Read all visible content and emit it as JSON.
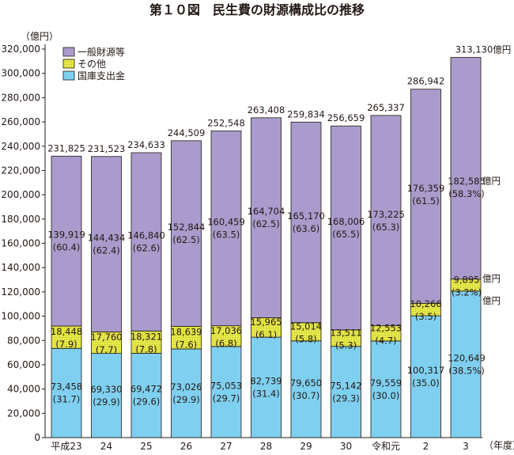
{
  "chart_data": {
    "type": "bar",
    "stacked": true,
    "title": "第１０図　民生費の財源構成比の推移",
    "ylabel": "（億円）",
    "xlabel": "（年度）",
    "ylim": [
      0,
      320000
    ],
    "yticks": [
      "0",
      "20,000",
      "40,000",
      "60,000",
      "80,000",
      "100,000",
      "120,000",
      "140,000",
      "160,000",
      "180,000",
      "200,000",
      "220,000",
      "240,000",
      "260,000",
      "280,000",
      "300,000",
      "320,000"
    ],
    "grid": false,
    "legend_position": "top-left",
    "categories": [
      "平成23",
      "24",
      "25",
      "26",
      "27",
      "28",
      "29",
      "30",
      "令和元",
      "2",
      "3"
    ],
    "totals": [
      231825,
      231523,
      234633,
      244509,
      252548,
      263408,
      259834,
      256659,
      265337,
      286942,
      313130
    ],
    "total_labels": [
      "231,825",
      "231,523",
      "234,633",
      "244,509",
      "252,548",
      "263,408",
      "259,834",
      "256,659",
      "265,337",
      "286,942",
      "313,130億円"
    ],
    "series": [
      {
        "name": "国庫支出金",
        "color": "#7fd0f0",
        "values": [
          73458,
          69330,
          69472,
          73026,
          75053,
          82739,
          79650,
          75142,
          79559,
          100317,
          120649
        ],
        "value_labels": [
          "73,458",
          "69,330",
          "69,472",
          "73,026",
          "75,053",
          "82,739",
          "79,650",
          "75,142",
          "79,559",
          "100,317",
          "120,649"
        ],
        "pct_labels": [
          "(31.7)",
          "(29.9)",
          "(29.6)",
          "(29.9)",
          "(29.7)",
          "(31.4)",
          "(30.7)",
          "(29.3)",
          "(30.0)",
          "(35.0)",
          "(38.5%)"
        ]
      },
      {
        "name": "その他",
        "color": "#e6e84a",
        "values": [
          18448,
          17760,
          18321,
          18639,
          17036,
          15965,
          15014,
          13511,
          12553,
          10266,
          9895
        ],
        "value_labels": [
          "18,448",
          "17,760",
          "18,321",
          "18,639",
          "17,036",
          "15,965",
          "15,014",
          "13,511",
          "12,553",
          "10,266",
          "9,895"
        ],
        "pct_labels": [
          "(7.9)",
          "(7.7)",
          "(7.8)",
          "(7.6)",
          "(6.8)",
          "(6.1)",
          "(5.8)",
          "(5.3)",
          "(4.7)",
          "(3.5)",
          "(3.2%)"
        ]
      },
      {
        "name": "一般財源等",
        "color": "#a99ccc",
        "values": [
          139919,
          144434,
          146840,
          152844,
          160459,
          164704,
          165170,
          168006,
          173225,
          176359,
          182585
        ],
        "value_labels": [
          "139,919",
          "144,434",
          "146,840",
          "152,844",
          "160,459",
          "164,704",
          "165,170",
          "168,006",
          "173,225",
          "176,359",
          "182,585"
        ],
        "pct_labels": [
          "(60.4)",
          "(62.4)",
          "(62.6)",
          "(62.5)",
          "(63.5)",
          "(62.5)",
          "(63.6)",
          "(65.5)",
          "(65.3)",
          "(61.5)",
          "(58.3%)"
        ]
      }
    ],
    "unit_suffix": "億円",
    "legend_order": [
      "一般財源等",
      "その他",
      "国庫支出金"
    ]
  }
}
